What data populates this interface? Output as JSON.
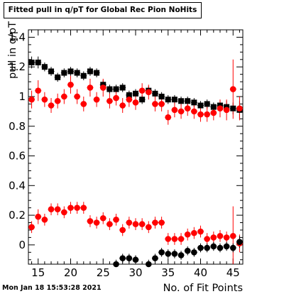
{
  "chart_data": {
    "type": "scatter",
    "title": "Fitted pull in q/pT for Global Rec Pion NoHits",
    "xlabel": "No. of Fit Points",
    "ylabel": "pull in q/pT",
    "xlim": [
      13.5,
      46.5
    ],
    "ylim": [
      -0.13,
      1.45
    ],
    "x_ticks": [
      15,
      20,
      25,
      30,
      35,
      40,
      45
    ],
    "y_ticks": [
      0,
      0.2,
      0.4,
      0.6,
      0.8,
      1,
      1.2,
      1.4
    ],
    "x_tick_labels": [
      "15",
      "20",
      "25",
      "30",
      "35",
      "40",
      "45"
    ],
    "y_tick_labels": [
      "0",
      "0.2",
      "0.4",
      "0.6",
      "0.8",
      "1",
      "1.2",
      "1.4"
    ],
    "grid": false,
    "series": [
      {
        "marker": "square",
        "color": "#000000",
        "x": [
          14,
          15,
          16,
          17,
          18,
          19,
          20,
          21,
          22,
          23,
          24,
          25,
          26,
          27,
          28,
          29,
          30,
          31,
          32,
          33,
          34,
          35,
          36,
          37,
          38,
          39,
          40,
          41,
          42,
          43,
          44,
          45,
          46
        ],
        "values": [
          1.23,
          1.23,
          1.2,
          1.17,
          1.13,
          1.16,
          1.17,
          1.16,
          1.14,
          1.17,
          1.16,
          1.08,
          1.05,
          1.05,
          1.06,
          1.01,
          1.02,
          0.98,
          1.04,
          1.02,
          1.0,
          0.98,
          0.98,
          0.97,
          0.97,
          0.96,
          0.94,
          0.95,
          0.93,
          0.94,
          0.93,
          0.92,
          0.91
        ],
        "errors": [
          0.04,
          0.04,
          0.03,
          0.03,
          0.03,
          0.03,
          0.03,
          0.03,
          0.03,
          0.03,
          0.03,
          0.03,
          0.03,
          0.03,
          0.03,
          0.03,
          0.03,
          0.03,
          0.03,
          0.03,
          0.03,
          0.03,
          0.03,
          0.03,
          0.03,
          0.03,
          0.03,
          0.03,
          0.03,
          0.03,
          0.04,
          0.04,
          0.06
        ]
      },
      {
        "marker": "circle",
        "color": "#ff0000",
        "x": [
          14,
          15,
          16,
          17,
          18,
          19,
          20,
          21,
          22,
          23,
          24,
          25,
          26,
          27,
          28,
          29,
          30,
          31,
          32,
          33,
          34,
          35,
          36,
          37,
          38,
          39,
          40,
          41,
          42,
          43,
          44,
          45,
          46
        ],
        "values": [
          0.98,
          1.04,
          0.98,
          0.94,
          0.97,
          1.0,
          1.08,
          1.0,
          0.95,
          1.06,
          0.98,
          1.06,
          0.97,
          0.99,
          0.94,
          0.98,
          0.96,
          1.04,
          1.03,
          0.95,
          0.95,
          0.86,
          0.91,
          0.9,
          0.92,
          0.9,
          0.88,
          0.88,
          0.89,
          0.92,
          0.91,
          1.05,
          0.92
        ],
        "errors": [
          0.06,
          0.07,
          0.05,
          0.05,
          0.05,
          0.05,
          0.06,
          0.05,
          0.05,
          0.06,
          0.05,
          0.06,
          0.05,
          0.05,
          0.05,
          0.05,
          0.05,
          0.05,
          0.05,
          0.05,
          0.05,
          0.05,
          0.05,
          0.05,
          0.05,
          0.05,
          0.05,
          0.05,
          0.05,
          0.06,
          0.07,
          0.2,
          0.08
        ]
      },
      {
        "marker": "circle",
        "color": "#ff0000",
        "x": [
          14,
          15,
          16,
          17,
          18,
          19,
          20,
          21,
          22,
          23,
          24,
          25,
          26,
          27,
          28,
          29,
          30,
          31,
          32,
          33,
          34,
          35,
          36,
          37,
          38,
          39,
          40,
          41,
          42,
          43,
          44,
          45,
          46
        ],
        "values": [
          0.12,
          0.19,
          0.17,
          0.24,
          0.24,
          0.22,
          0.25,
          0.25,
          0.25,
          0.16,
          0.15,
          0.18,
          0.14,
          0.17,
          0.1,
          0.15,
          0.14,
          0.14,
          0.12,
          0.15,
          0.15,
          0.04,
          0.04,
          0.04,
          0.07,
          0.08,
          0.09,
          0.04,
          0.05,
          0.06,
          0.05,
          0.06,
          0.01
        ],
        "errors": [
          0.04,
          0.05,
          0.04,
          0.04,
          0.04,
          0.04,
          0.04,
          0.04,
          0.04,
          0.04,
          0.04,
          0.04,
          0.04,
          0.04,
          0.04,
          0.04,
          0.04,
          0.04,
          0.04,
          0.04,
          0.04,
          0.04,
          0.04,
          0.04,
          0.04,
          0.04,
          0.04,
          0.04,
          0.04,
          0.04,
          0.04,
          0.2,
          0.06
        ]
      },
      {
        "marker": "circle",
        "color": "#000000",
        "x": [
          27,
          28,
          29,
          30,
          31,
          32,
          33,
          34,
          35,
          36,
          37,
          38,
          39,
          40,
          41,
          42,
          43,
          44,
          45,
          46
        ],
        "values": [
          -0.13,
          -0.09,
          -0.09,
          -0.1,
          -0.15,
          -0.13,
          -0.09,
          -0.05,
          -0.06,
          -0.06,
          -0.07,
          -0.04,
          -0.05,
          -0.02,
          -0.02,
          -0.01,
          -0.02,
          -0.01,
          -0.02,
          0.02
        ],
        "errors": [
          0.03,
          0.03,
          0.03,
          0.03,
          0.03,
          0.03,
          0.03,
          0.03,
          0.03,
          0.03,
          0.03,
          0.03,
          0.03,
          0.03,
          0.03,
          0.03,
          0.03,
          0.03,
          0.03,
          0.04
        ]
      }
    ]
  },
  "footer": {
    "timestamp": "Mon Jan 18 15:53:28 2021"
  }
}
